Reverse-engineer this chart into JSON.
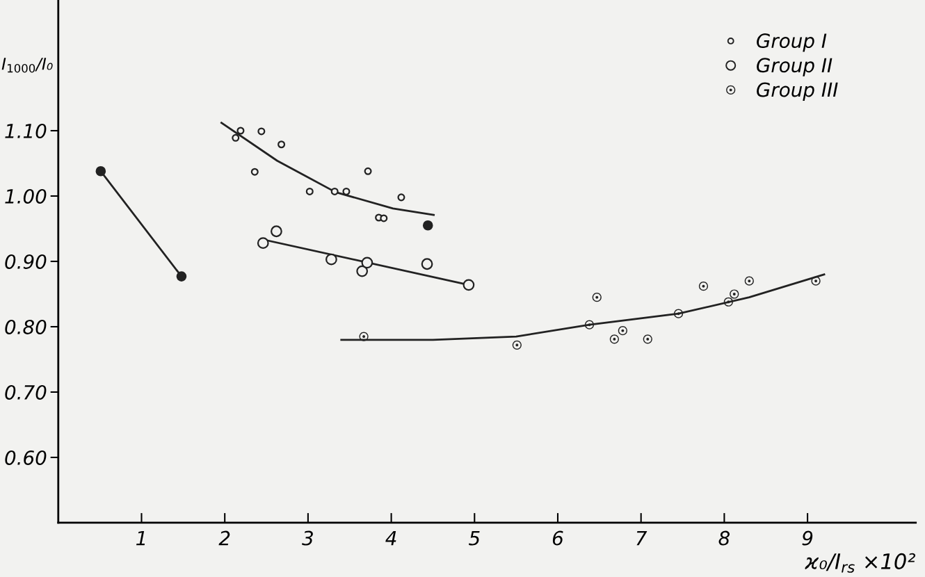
{
  "chart_data": {
    "type": "scatter",
    "xlabel": "ϰ₀/I$_{rs}$ ×10²",
    "ylabel": "I$_{1000}$/I₀",
    "xlim": [
      0,
      10.3
    ],
    "ylim": [
      0.5,
      1.3
    ],
    "xticks": [
      1,
      2,
      3,
      4,
      5,
      6,
      7,
      8,
      9
    ],
    "yticks": [
      {
        "value": 0.6,
        "label": "0.60"
      },
      {
        "value": 0.7,
        "label": "0.70"
      },
      {
        "value": 0.8,
        "label": "0.80"
      },
      {
        "value": 0.9,
        "label": "0.90"
      },
      {
        "value": 1.0,
        "label": "1.00"
      },
      {
        "value": 1.1,
        "label": "1.10"
      }
    ],
    "grid": false,
    "legend": "top right",
    "marker": "circle",
    "series": [
      {
        "name": "Group I",
        "type": "scatter",
        "color": "#222222",
        "x": [
          2.13,
          2.19,
          2.44,
          2.68,
          2.36,
          3.02,
          3.32,
          3.46,
          3.72,
          4.12,
          3.85,
          3.91
        ],
        "values": [
          1.089,
          1.1,
          1.099,
          1.079,
          1.037,
          1.007,
          1.007,
          1.007,
          1.038,
          0.998,
          0.967,
          0.966
        ]
      },
      {
        "name": "Group II",
        "type": "scatter",
        "color": "#222222",
        "x": [
          2.62,
          2.46,
          3.28,
          3.65,
          3.71,
          4.43,
          4.93
        ],
        "values": [
          0.946,
          0.928,
          0.903,
          0.885,
          0.898,
          0.896,
          0.864
        ]
      },
      {
        "name": "Group III",
        "type": "scatter",
        "color": "#222222",
        "x": [
          3.67,
          5.51,
          6.38,
          6.47,
          6.68,
          6.78,
          7.08,
          7.45,
          7.75,
          8.05,
          8.12,
          8.3,
          9.1
        ],
        "values": [
          0.785,
          0.772,
          0.803,
          0.845,
          0.781,
          0.794,
          0.781,
          0.82,
          0.862,
          0.838,
          0.85,
          0.87,
          0.87
        ]
      },
      {
        "type": "scatter",
        "color": "#222222",
        "x": [
          0.51,
          1.48,
          4.44
        ],
        "values": [
          1.038,
          0.877,
          0.955
        ]
      },
      {
        "type": "line",
        "marker": "none",
        "color": "#222222",
        "x": [
          1.96,
          2.63,
          3.33,
          4.02,
          4.51
        ],
        "values": [
          1.112,
          1.054,
          1.006,
          0.981,
          0.971
        ]
      },
      {
        "type": "line",
        "marker": "none",
        "color": "#222222",
        "x": [
          2.44,
          4.93
        ],
        "values": [
          0.934,
          0.864
        ]
      },
      {
        "type": "line",
        "marker": "none",
        "color": "#222222",
        "x": [
          3.4,
          4.5,
          5.5,
          6.38,
          7.45,
          8.3,
          9.2
        ],
        "values": [
          0.78,
          0.78,
          0.785,
          0.803,
          0.82,
          0.845,
          0.88
        ]
      },
      {
        "type": "line",
        "marker": "none",
        "color": "#222222",
        "x": [
          0.51,
          1.48
        ],
        "values": [
          1.038,
          0.877
        ]
      }
    ]
  }
}
